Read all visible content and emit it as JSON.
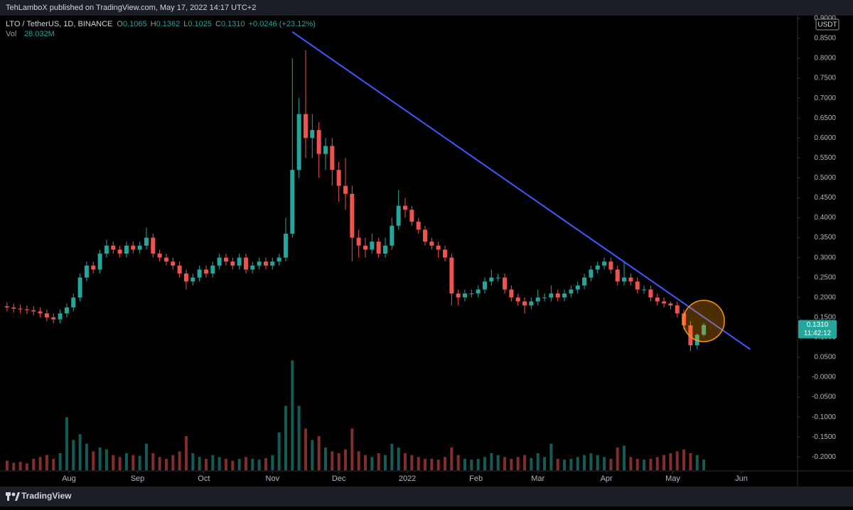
{
  "page": {
    "publish_line": "TehLamboX published on TradingView.com, May 17, 2022 14:17 UTC+2",
    "brand": "TradingView"
  },
  "chart_data": {
    "type": "candlestick",
    "symbol": "LTO / TetherUS, 1D, BINANCE",
    "ohlc_keys": [
      "O",
      "H",
      "L",
      "C"
    ],
    "ohlc_values": [
      "0.1065",
      "0.1362",
      "0.1025",
      "0.1310"
    ],
    "change": "+0.0246 (+23.12%)",
    "volume_key": "Vol",
    "volume_label": "28.032M",
    "currency": "USDT",
    "last_price": "0.1310",
    "countdown": "11:42:12",
    "up_color": "#26a69a",
    "down_color": "#ef5350",
    "open": [
      0.178,
      0.175,
      0.172,
      0.17,
      0.168,
      0.165,
      0.16,
      0.15,
      0.145,
      0.16,
      0.175,
      0.2,
      0.25,
      0.28,
      0.27,
      0.31,
      0.33,
      0.32,
      0.31,
      0.33,
      0.32,
      0.33,
      0.35,
      0.31,
      0.3,
      0.29,
      0.28,
      0.26,
      0.24,
      0.25,
      0.27,
      0.26,
      0.28,
      0.3,
      0.29,
      0.28,
      0.3,
      0.27,
      0.28,
      0.29,
      0.28,
      0.29,
      0.3,
      0.36,
      0.52,
      0.66,
      0.6,
      0.62,
      0.56,
      0.58,
      0.52,
      0.48,
      0.46,
      0.35,
      0.33,
      0.32,
      0.34,
      0.31,
      0.33,
      0.38,
      0.43,
      0.42,
      0.39,
      0.37,
      0.34,
      0.33,
      0.32,
      0.3,
      0.21,
      0.2,
      0.21,
      0.21,
      0.22,
      0.24,
      0.25,
      0.25,
      0.22,
      0.2,
      0.19,
      0.18,
      0.19,
      0.2,
      0.2,
      0.21,
      0.2,
      0.21,
      0.22,
      0.23,
      0.25,
      0.27,
      0.28,
      0.29,
      0.27,
      0.24,
      0.25,
      0.24,
      0.22,
      0.22,
      0.2,
      0.19,
      0.185,
      0.18,
      0.16,
      0.13,
      0.08,
      0.1065
    ],
    "high": [
      0.188,
      0.185,
      0.182,
      0.18,
      0.178,
      0.175,
      0.17,
      0.16,
      0.17,
      0.185,
      0.21,
      0.26,
      0.29,
      0.29,
      0.32,
      0.345,
      0.34,
      0.33,
      0.34,
      0.34,
      0.34,
      0.375,
      0.36,
      0.32,
      0.31,
      0.3,
      0.29,
      0.27,
      0.26,
      0.28,
      0.28,
      0.29,
      0.31,
      0.31,
      0.3,
      0.31,
      0.31,
      0.29,
      0.3,
      0.3,
      0.3,
      0.31,
      0.4,
      0.8,
      0.7,
      0.82,
      0.66,
      0.64,
      0.6,
      0.6,
      0.54,
      0.55,
      0.48,
      0.37,
      0.35,
      0.36,
      0.35,
      0.35,
      0.4,
      0.47,
      0.45,
      0.43,
      0.4,
      0.38,
      0.35,
      0.34,
      0.33,
      0.31,
      0.22,
      0.22,
      0.22,
      0.23,
      0.25,
      0.27,
      0.26,
      0.26,
      0.23,
      0.21,
      0.2,
      0.2,
      0.22,
      0.21,
      0.23,
      0.22,
      0.22,
      0.23,
      0.24,
      0.26,
      0.28,
      0.29,
      0.3,
      0.3,
      0.28,
      0.29,
      0.26,
      0.25,
      0.23,
      0.23,
      0.21,
      0.2,
      0.19,
      0.19,
      0.17,
      0.14,
      0.11,
      0.1362
    ],
    "low": [
      0.165,
      0.162,
      0.16,
      0.158,
      0.155,
      0.15,
      0.14,
      0.135,
      0.135,
      0.15,
      0.165,
      0.19,
      0.24,
      0.26,
      0.26,
      0.3,
      0.31,
      0.3,
      0.3,
      0.31,
      0.31,
      0.32,
      0.3,
      0.29,
      0.28,
      0.27,
      0.25,
      0.22,
      0.23,
      0.24,
      0.25,
      0.25,
      0.27,
      0.28,
      0.27,
      0.27,
      0.26,
      0.26,
      0.27,
      0.27,
      0.27,
      0.28,
      0.29,
      0.35,
      0.5,
      0.55,
      0.55,
      0.5,
      0.52,
      0.48,
      0.44,
      0.42,
      0.29,
      0.3,
      0.3,
      0.31,
      0.3,
      0.3,
      0.32,
      0.37,
      0.4,
      0.38,
      0.36,
      0.33,
      0.32,
      0.3,
      0.29,
      0.18,
      0.18,
      0.19,
      0.2,
      0.2,
      0.21,
      0.23,
      0.24,
      0.21,
      0.19,
      0.18,
      0.16,
      0.17,
      0.18,
      0.19,
      0.19,
      0.19,
      0.19,
      0.2,
      0.21,
      0.22,
      0.24,
      0.26,
      0.27,
      0.26,
      0.23,
      0.23,
      0.23,
      0.21,
      0.21,
      0.19,
      0.18,
      0.175,
      0.17,
      0.15,
      0.12,
      0.065,
      0.07,
      0.1025
    ],
    "close": [
      0.175,
      0.172,
      0.17,
      0.168,
      0.165,
      0.16,
      0.15,
      0.145,
      0.16,
      0.175,
      0.2,
      0.25,
      0.28,
      0.27,
      0.31,
      0.33,
      0.32,
      0.31,
      0.33,
      0.32,
      0.33,
      0.35,
      0.31,
      0.3,
      0.29,
      0.28,
      0.26,
      0.24,
      0.25,
      0.27,
      0.26,
      0.28,
      0.3,
      0.29,
      0.28,
      0.3,
      0.27,
      0.28,
      0.29,
      0.28,
      0.29,
      0.3,
      0.36,
      0.52,
      0.66,
      0.6,
      0.62,
      0.56,
      0.58,
      0.52,
      0.48,
      0.46,
      0.35,
      0.33,
      0.32,
      0.34,
      0.31,
      0.33,
      0.38,
      0.43,
      0.42,
      0.39,
      0.37,
      0.34,
      0.33,
      0.32,
      0.3,
      0.21,
      0.2,
      0.21,
      0.21,
      0.22,
      0.24,
      0.25,
      0.25,
      0.22,
      0.2,
      0.19,
      0.18,
      0.19,
      0.2,
      0.2,
      0.21,
      0.2,
      0.21,
      0.22,
      0.23,
      0.25,
      0.27,
      0.28,
      0.29,
      0.27,
      0.24,
      0.25,
      0.24,
      0.22,
      0.22,
      0.2,
      0.19,
      0.185,
      0.18,
      0.16,
      0.13,
      0.08,
      0.1065,
      0.131
    ],
    "volume": [
      25,
      20,
      22,
      18,
      30,
      35,
      40,
      30,
      45,
      140,
      80,
      95,
      70,
      50,
      60,
      55,
      40,
      35,
      45,
      40,
      38,
      70,
      45,
      35,
      30,
      40,
      50,
      90,
      45,
      35,
      30,
      40,
      35,
      30,
      25,
      30,
      35,
      30,
      28,
      32,
      40,
      100,
      170,
      290,
      170,
      110,
      80,
      90,
      60,
      50,
      45,
      55,
      110,
      50,
      40,
      35,
      45,
      40,
      70,
      60,
      45,
      40,
      35,
      30,
      30,
      28,
      35,
      60,
      40,
      30,
      28,
      30,
      35,
      45,
      40,
      35,
      30,
      35,
      40,
      32,
      45,
      35,
      70,
      30,
      28,
      30,
      35,
      40,
      45,
      40,
      35,
      30,
      60,
      65,
      35,
      30,
      28,
      30,
      35,
      40,
      45,
      50,
      55,
      45,
      40,
      28.032
    ],
    "volume_ylim": [
      0,
      300
    ],
    "ylim": [
      -0.2,
      0.9
    ],
    "yticks": [
      {
        "value": 0.9,
        "label": "0.9000"
      },
      {
        "value": 0.85,
        "label": "0.8500"
      },
      {
        "value": 0.8,
        "label": "0.8000"
      },
      {
        "value": 0.75,
        "label": "0.7500"
      },
      {
        "value": 0.7,
        "label": "0.7000"
      },
      {
        "value": 0.65,
        "label": "0.6500"
      },
      {
        "value": 0.6,
        "label": "0.6000"
      },
      {
        "value": 0.55,
        "label": "0.5500"
      },
      {
        "value": 0.5,
        "label": "0.5000"
      },
      {
        "value": 0.45,
        "label": "0.4500"
      },
      {
        "value": 0.4,
        "label": "0.4000"
      },
      {
        "value": 0.35,
        "label": "0.3500"
      },
      {
        "value": 0.3,
        "label": "0.3000"
      },
      {
        "value": 0.25,
        "label": "0.2500"
      },
      {
        "value": 0.2,
        "label": "0.2000"
      },
      {
        "value": 0.15,
        "label": "0.1500"
      },
      {
        "value": 0.1,
        "label": "0.1000"
      },
      {
        "value": 0.05,
        "label": "0.0500"
      },
      {
        "value": 0,
        "label": "-0.0000"
      },
      {
        "value": -0.05,
        "label": "-0.0500"
      },
      {
        "value": -0.1,
        "label": "-0.1000"
      },
      {
        "value": -0.15,
        "label": "-0.1500"
      },
      {
        "value": -0.2,
        "label": "-0.2000"
      }
    ],
    "xticks": [
      {
        "value": 9.33,
        "label": "Aug"
      },
      {
        "value": 19.67,
        "label": "Sep"
      },
      {
        "value": 29.67,
        "label": "Oct"
      },
      {
        "value": 40,
        "label": "Nov"
      },
      {
        "value": 50,
        "label": "Dec"
      },
      {
        "value": 60.33,
        "label": "2022"
      },
      {
        "value": 70.67,
        "label": "Feb"
      },
      {
        "value": 80,
        "label": "Mar"
      },
      {
        "value": 90.33,
        "label": "Apr"
      },
      {
        "value": 100.33,
        "label": "May"
      },
      {
        "value": 110.67,
        "label": "Jun"
      }
    ],
    "trendline": {
      "start": [
        43,
        0.866
      ],
      "end": [
        112,
        0.07
      ],
      "color": "#3d5afe"
    },
    "highlight": {
      "center": [
        105,
        0.141
      ],
      "color": "#ff9800"
    }
  }
}
